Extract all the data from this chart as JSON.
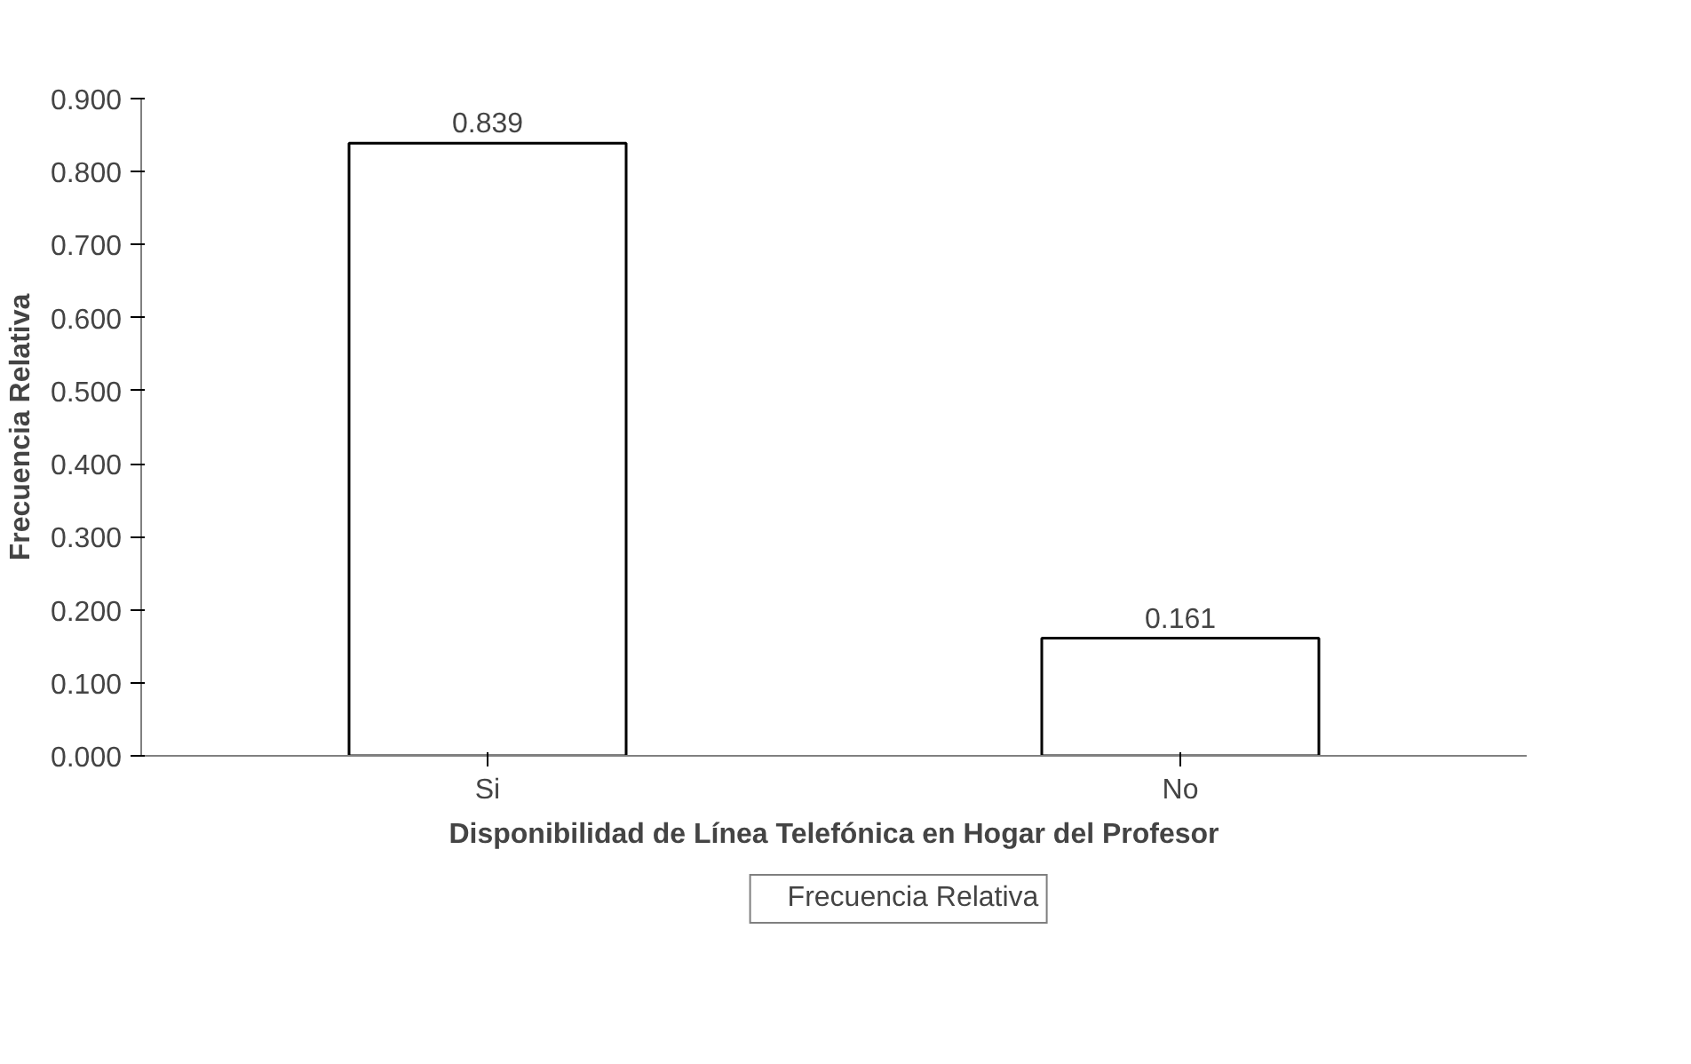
{
  "chart_data": {
    "type": "bar",
    "xlabel": "Disponibilidad de Línea Telefónica en Hogar del Profesor",
    "ylabel": "Frecuencia Relativa",
    "categories": [
      "Si",
      "No"
    ],
    "series": [
      {
        "name": "Frecuencia Relativa",
        "color": "#ffffff",
        "values": [
          0.839,
          0.161
        ]
      }
    ],
    "ylim": [
      0,
      0.9
    ],
    "yticks": [
      {
        "value": 0,
        "label": "0.000"
      },
      {
        "value": 0.1,
        "label": "0.100"
      },
      {
        "value": 0.2,
        "label": "0.200"
      },
      {
        "value": 0.3,
        "label": "0.300"
      },
      {
        "value": 0.4,
        "label": "0.400"
      },
      {
        "value": 0.5,
        "label": "0.500"
      },
      {
        "value": 0.6,
        "label": "0.600"
      },
      {
        "value": 0.7,
        "label": "0.700"
      },
      {
        "value": 0.8,
        "label": "0.800"
      },
      {
        "value": 0.9,
        "label": "0.900"
      }
    ],
    "data_labels": true,
    "grid": false,
    "legend": "bottom"
  }
}
